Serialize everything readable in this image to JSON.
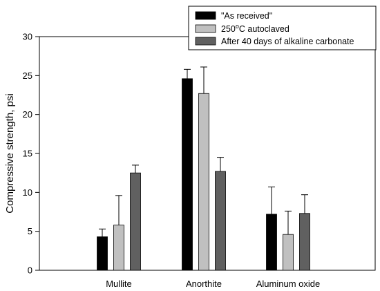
{
  "chart_data": {
    "type": "bar",
    "title": "",
    "xlabel": "",
    "ylabel": "Compressive strength, psi",
    "ylim": [
      0,
      30
    ],
    "yticks": [
      0,
      5,
      10,
      15,
      20,
      25,
      30
    ],
    "grid": false,
    "legend_position": "top-right",
    "categories": [
      "Mullite",
      "Anorthite",
      "Aluminum oxide"
    ],
    "series": [
      {
        "name": "\"As received\"",
        "color": "#000000",
        "values": [
          4.3,
          24.6,
          7.2
        ],
        "error": [
          1.0,
          1.2,
          3.5
        ]
      },
      {
        "name": "250°C autoclaved",
        "name_base": "250",
        "name_sup": "o",
        "name_rest": "C autoclaved",
        "color": "#c0c0c0",
        "values": [
          5.8,
          22.7,
          4.6
        ],
        "error": [
          3.8,
          3.4,
          3.0
        ]
      },
      {
        "name": "After 40 days of alkaline carbonate",
        "color": "#606060",
        "values": [
          12.5,
          12.7,
          7.3
        ],
        "error": [
          1.0,
          1.8,
          2.4
        ]
      }
    ]
  }
}
